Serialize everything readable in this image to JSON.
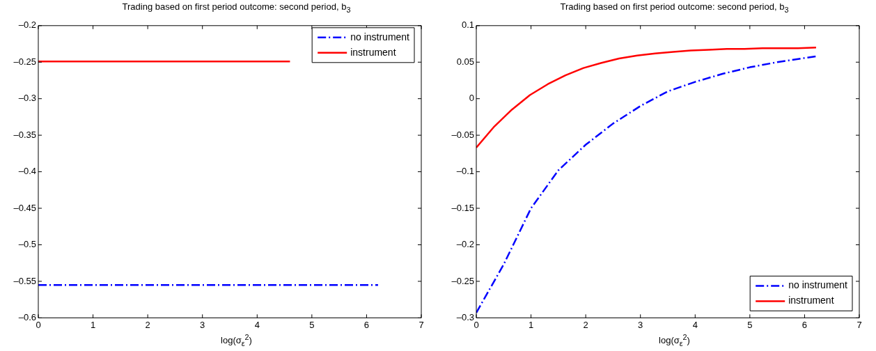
{
  "chart_data": [
    {
      "type": "line",
      "title": "Trading based on first period outcome: second period, b$_{3}$",
      "xlabel": "log(σ$_{ε}$$^{2}$)",
      "xlim": [
        0,
        7
      ],
      "xticks": [
        0,
        1,
        2,
        3,
        4,
        5,
        6,
        7
      ],
      "ylim": [
        -0.6,
        -0.2
      ],
      "yticks": [
        {
          "value": -0.6,
          "label": "–0.6"
        },
        {
          "value": -0.55,
          "label": "–0.55"
        },
        {
          "value": -0.5,
          "label": "–0.5"
        },
        {
          "value": -0.45,
          "label": "–0.45"
        },
        {
          "value": -0.4,
          "label": "–0.4"
        },
        {
          "value": -0.35,
          "label": "–0.35"
        },
        {
          "value": -0.3,
          "label": "–0.3"
        },
        {
          "value": -0.25,
          "label": "–0.25"
        },
        {
          "value": -0.2,
          "label": "–0.2"
        }
      ],
      "grid": false,
      "legend": "top right",
      "marker": "none",
      "series": [
        {
          "name": "no instrument",
          "color": "#0000ff",
          "line_style": "dashed",
          "x": [
            0,
            6.21
          ],
          "values": [
            -0.555,
            -0.555
          ]
        },
        {
          "name": "instrument",
          "color": "#ff0000",
          "line_style": "solid",
          "x": [
            0,
            2.3,
            4.6
          ],
          "values": [
            -0.249,
            -0.249,
            -0.249
          ]
        }
      ]
    },
    {
      "type": "line",
      "title": "Trading based on first period outcome: second period, b$_{3}$",
      "xlabel": "log(σ$_{ε}$$^{2}$)",
      "xlim": [
        0,
        7
      ],
      "xticks": [
        0,
        1,
        2,
        3,
        4,
        5,
        6,
        7
      ],
      "ylim": [
        -0.3,
        0.1
      ],
      "yticks": [
        {
          "value": -0.3,
          "label": "–0.3"
        },
        {
          "value": -0.25,
          "label": "–0.25"
        },
        {
          "value": -0.2,
          "label": "–0.2"
        },
        {
          "value": -0.15,
          "label": "–0.15"
        },
        {
          "value": -0.1,
          "label": "–0.1"
        },
        {
          "value": -0.05,
          "label": "–0.05"
        },
        0,
        0.05,
        0.1
      ],
      "grid": false,
      "legend": "bottom right",
      "marker": "none",
      "series": [
        {
          "name": "no instrument",
          "color": "#0000ff",
          "line_style": "dashed",
          "x": [
            0,
            0.25,
            0.5,
            1,
            1.5,
            2,
            2.5,
            3,
            3.5,
            4,
            4.5,
            5,
            5.5,
            6.21
          ],
          "values": [
            -0.293,
            -0.26,
            -0.227,
            -0.15,
            -0.098,
            -0.063,
            -0.034,
            -0.01,
            0.01,
            0.023,
            0.034,
            0.043,
            0.05,
            0.058
          ]
        },
        {
          "name": "instrument",
          "color": "#ff0000",
          "line_style": "solid",
          "x": [
            0,
            0.33,
            0.65,
            0.98,
            1.31,
            1.63,
            1.96,
            2.29,
            2.61,
            2.94,
            3.27,
            3.6,
            3.92,
            4.25,
            4.58,
            4.9,
            5.23,
            5.56,
            5.88,
            6.21
          ],
          "values": [
            -0.067,
            -0.038,
            -0.015,
            0.005,
            0.02,
            0.032,
            0.042,
            0.049,
            0.055,
            0.059,
            0.062,
            0.064,
            0.066,
            0.067,
            0.068,
            0.068,
            0.069,
            0.069,
            0.069,
            0.07
          ]
        }
      ]
    }
  ]
}
